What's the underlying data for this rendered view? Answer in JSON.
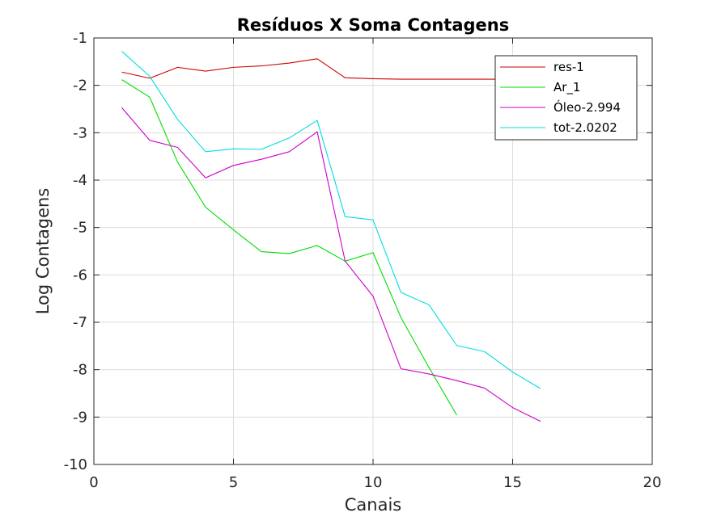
{
  "chart_data": {
    "type": "line",
    "title": "Resíduos X Soma Contagens",
    "xlabel": "Canais",
    "ylabel": "Log Contagens",
    "xlim": [
      0,
      20
    ],
    "ylim": [
      -10,
      -1
    ],
    "xticks": [
      "0",
      "5",
      "10",
      "15",
      "20"
    ],
    "yticks": [
      "-10",
      "-9",
      "-8",
      "-7",
      "-6",
      "-5",
      "-4",
      "-3",
      "-2",
      "-1"
    ],
    "grid": true,
    "legend_position": "top-right",
    "series": [
      {
        "name": "res-1",
        "color": "#cc0000",
        "x": [
          1,
          2,
          3,
          4,
          5,
          6,
          7,
          8,
          9,
          10,
          11,
          12,
          13,
          14,
          15,
          16
        ],
        "y": [
          -1.72,
          -1.85,
          -1.62,
          -1.7,
          -1.62,
          -1.59,
          -1.53,
          -1.44,
          -1.84,
          -1.86,
          -1.87,
          -1.87,
          -1.87,
          -1.87,
          -1.87,
          -1.87
        ]
      },
      {
        "name": "Ar_1",
        "color": "#00dd00",
        "x": [
          1,
          2,
          3,
          4,
          5,
          6,
          7,
          8,
          9,
          10,
          11,
          12,
          13
        ],
        "y": [
          -1.88,
          -2.25,
          -3.62,
          -4.57,
          -5.05,
          -5.51,
          -5.55,
          -5.38,
          -5.71,
          -5.53,
          -6.9,
          -7.95,
          -8.96
        ]
      },
      {
        "name": "Óleo-2.994",
        "color": "#cc00cc",
        "x": [
          1,
          2,
          3,
          4,
          5,
          6,
          7,
          8,
          9,
          10,
          11,
          12,
          13,
          14,
          15,
          16
        ],
        "y": [
          -2.47,
          -3.16,
          -3.31,
          -3.95,
          -3.69,
          -3.56,
          -3.4,
          -2.98,
          -5.71,
          -6.45,
          -7.98,
          -8.09,
          -8.23,
          -8.39,
          -8.8,
          -9.09
        ]
      },
      {
        "name": "tot-2.0202",
        "color": "#00dddd",
        "x": [
          1,
          2,
          3,
          4,
          5,
          6,
          7,
          8,
          9,
          10,
          11,
          12,
          13,
          14,
          15,
          16
        ],
        "y": [
          -1.28,
          -1.81,
          -2.72,
          -3.4,
          -3.34,
          -3.35,
          -3.11,
          -2.74,
          -4.77,
          -4.84,
          -6.37,
          -6.63,
          -7.49,
          -7.62,
          -8.05,
          -8.4
        ]
      }
    ]
  }
}
